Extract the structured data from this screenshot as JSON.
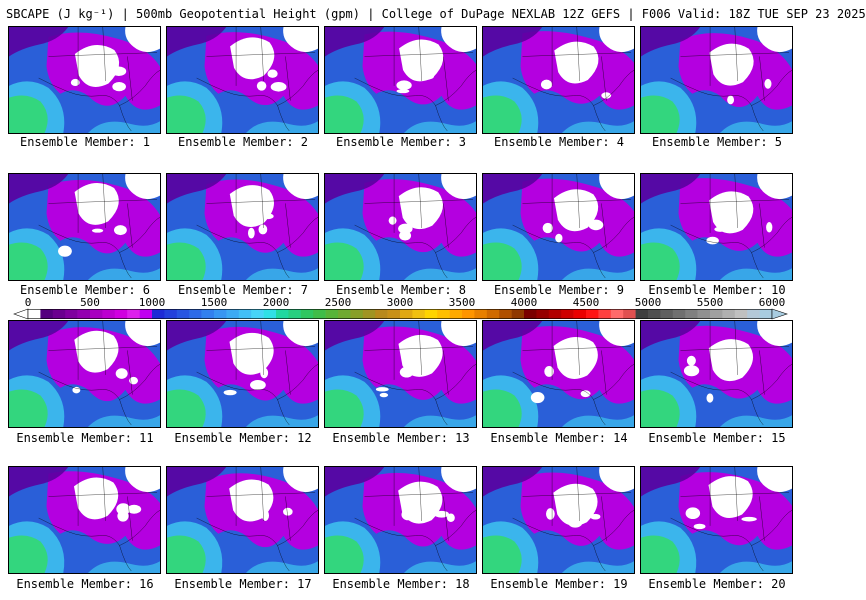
{
  "title": "SBCAPE (J kg⁻¹) | 500mb Geopotential Height (gpm) | College of DuPage NEXLAB 12Z GEFS | F006 Valid: 18Z TUE SEP 23 2025",
  "panel_label_prefix": "Ensemble Member: ",
  "members": [
    1,
    2,
    3,
    4,
    5,
    6,
    7,
    8,
    9,
    10,
    11,
    12,
    13,
    14,
    15,
    16,
    17,
    18,
    19,
    20
  ],
  "colorbar": {
    "unit": "J kg-1",
    "min": 0,
    "max": 6000,
    "tick_labels": [
      "0",
      "500",
      "1000",
      "1500",
      "2000",
      "2500",
      "3000",
      "3500",
      "4000",
      "4500",
      "5000",
      "5500",
      "6000"
    ],
    "colors": [
      "#ffffff",
      "#55007f",
      "#6a008f",
      "#7f009f",
      "#9300b0",
      "#a800c0",
      "#bc00d0",
      "#d000e0",
      "#dd20ec",
      "#c000f0",
      "#1e2ad6",
      "#2340dc",
      "#2855e2",
      "#2d6ae8",
      "#3280ee",
      "#3796f2",
      "#3caaf4",
      "#42bff6",
      "#48d4f8",
      "#30e0e6",
      "#20d8a0",
      "#28cf80",
      "#30c660",
      "#40bd48",
      "#58b438",
      "#70aa30",
      "#889f28",
      "#a09422",
      "#b8891c",
      "#c89018",
      "#e0a812",
      "#f0c010",
      "#ffd400",
      "#ffbf00",
      "#ffaa00",
      "#ff9500",
      "#e88000",
      "#d06a00",
      "#b05000",
      "#903800",
      "#7a0000",
      "#960000",
      "#b20000",
      "#ce0000",
      "#ea0000",
      "#ff1414",
      "#ff4040",
      "#ff6a6a",
      "#e05050",
      "#404040",
      "#505050",
      "#606060",
      "#707070",
      "#808080",
      "#909090",
      "#a0a0a0",
      "#b0b0b0",
      "#c0c0c0",
      "#b4c8d8",
      "#a8cce0"
    ]
  },
  "colors": {
    "white_zone": "#ffffff",
    "magenta_low": "#b400e0",
    "purple_dark": "#5a00a0",
    "blue_mid": "#2a5fd8",
    "cyan": "#3ec4f0",
    "green_gulf": "#33d67e",
    "boundaries": "#000000"
  }
}
